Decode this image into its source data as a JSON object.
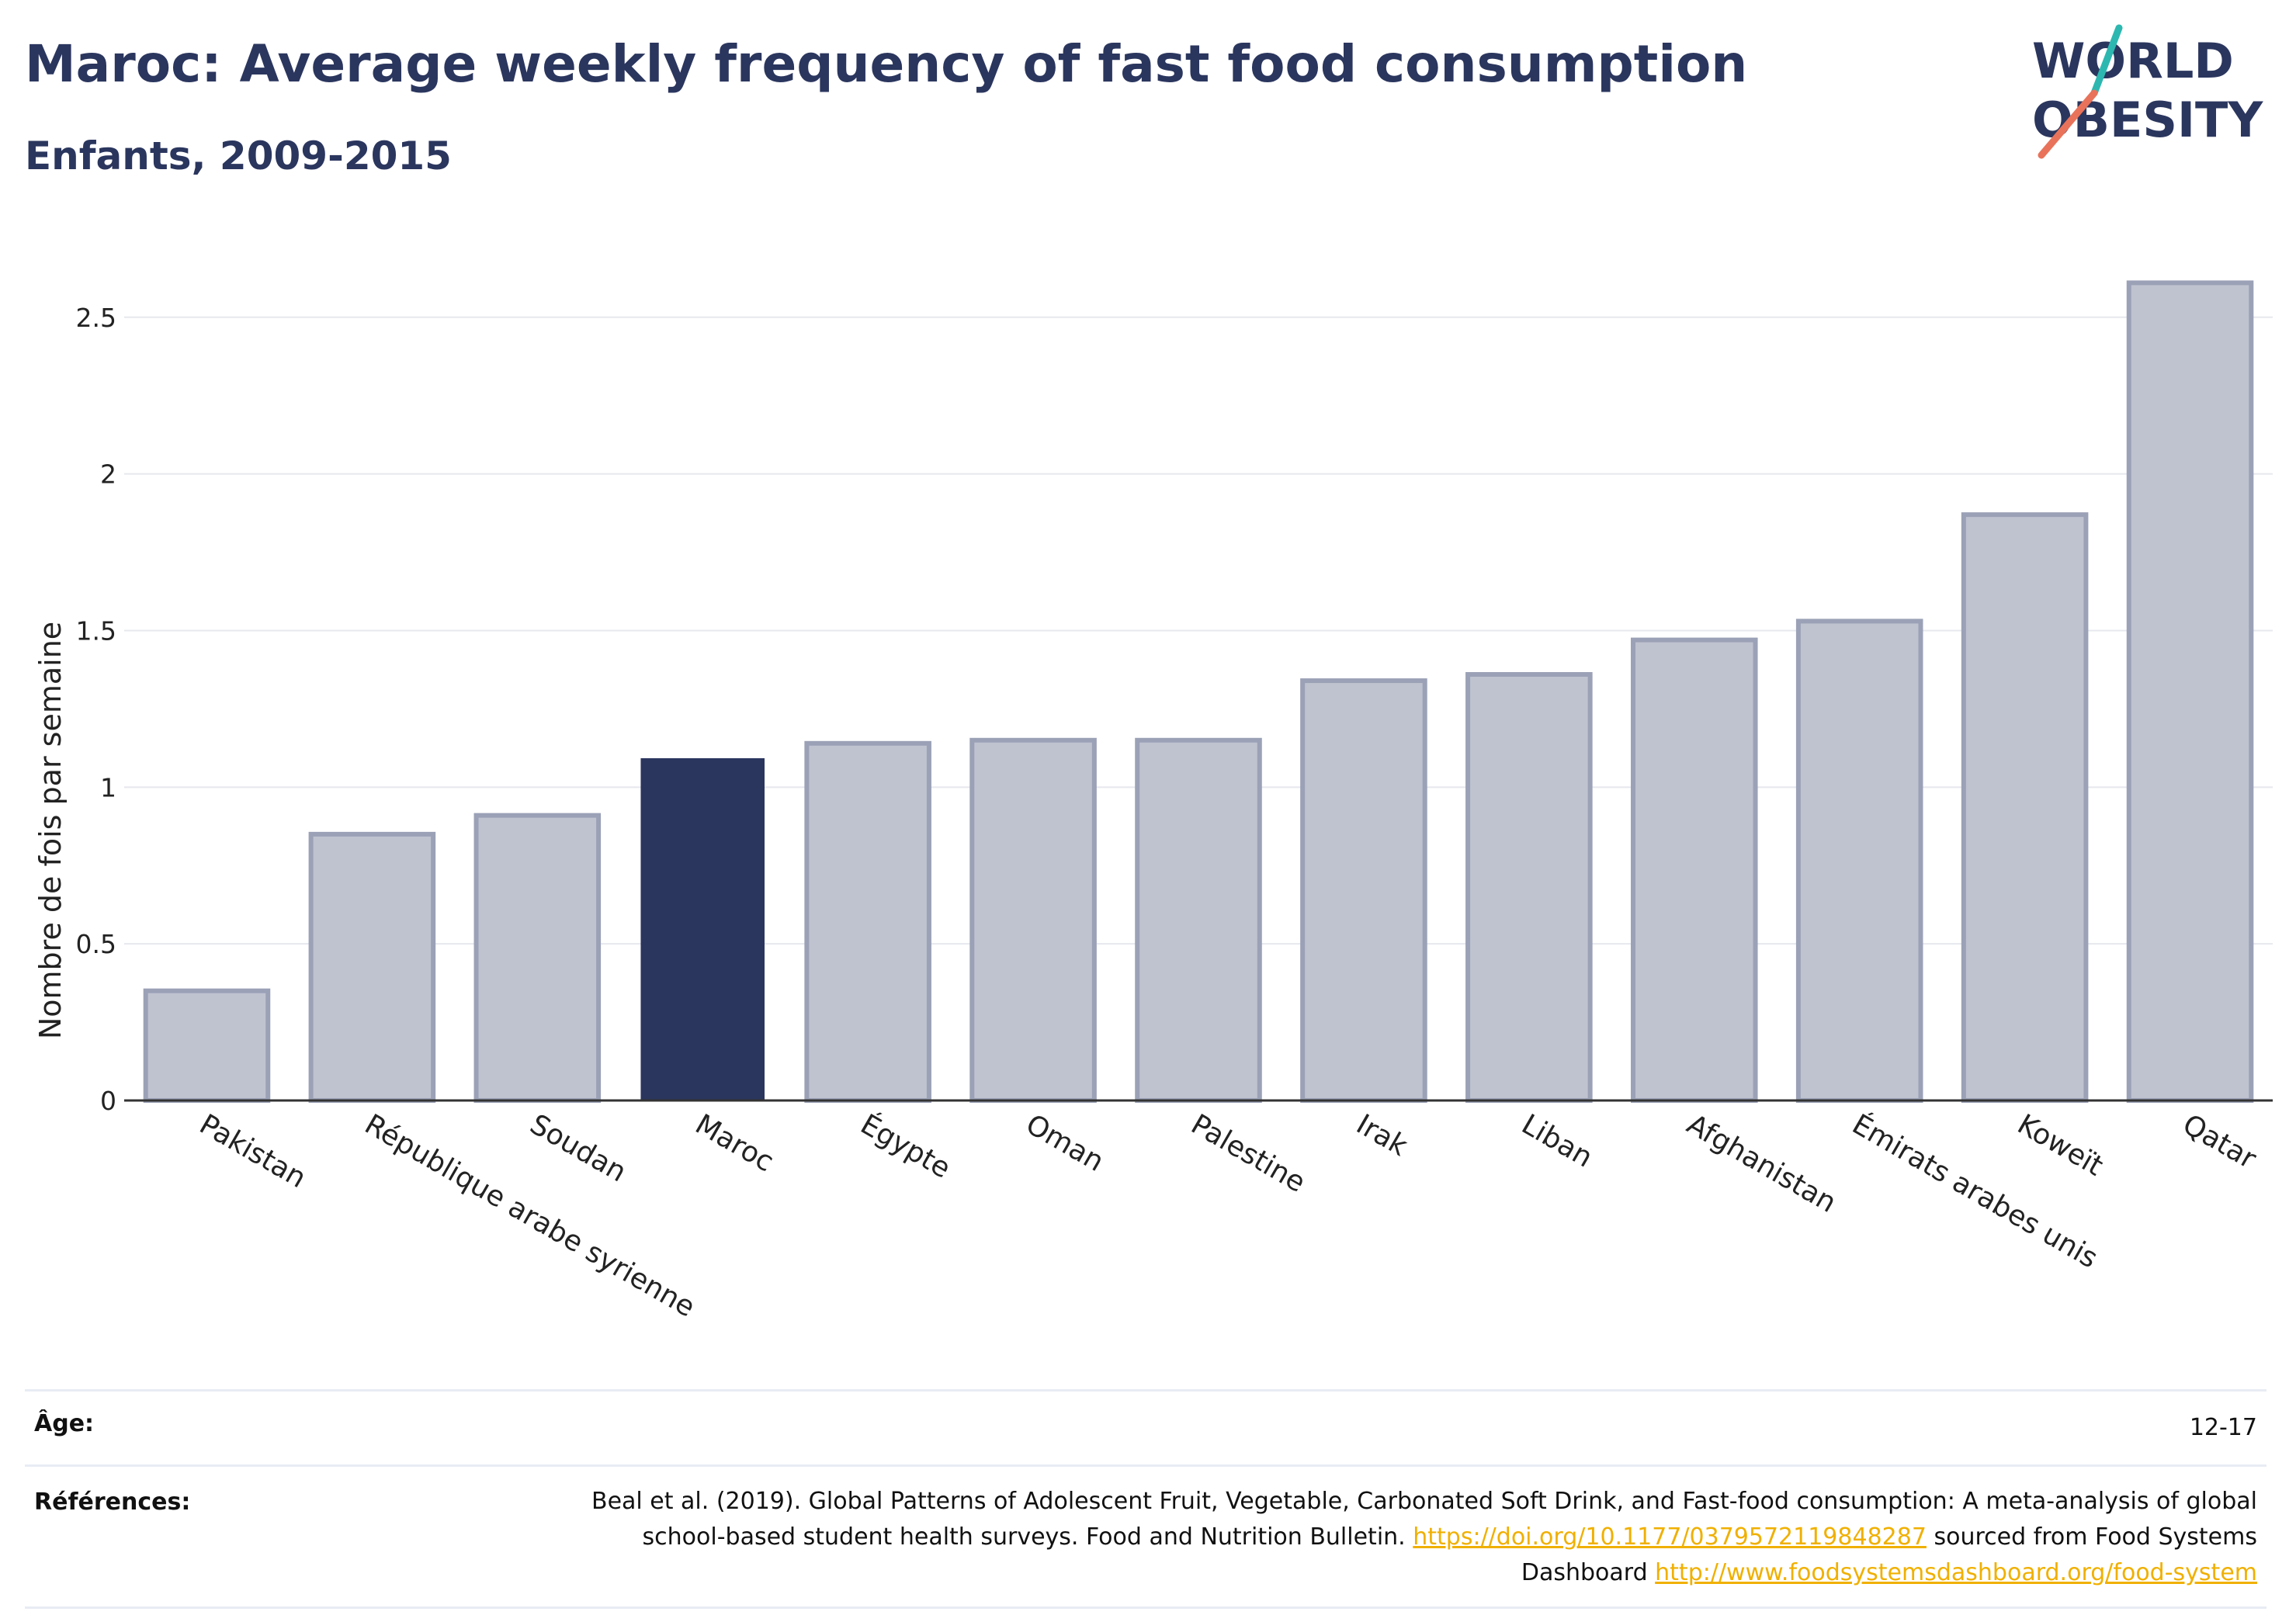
{
  "header": {
    "title": "Maroc: Average weekly frequency of fast food consumption",
    "subtitle": "Enfants, 2009-2015"
  },
  "logo": {
    "line1": "WORLD",
    "line2": "OBESITY"
  },
  "colors": {
    "highlight": "#2b365e",
    "bar_fill": "#bfc3d0",
    "bar_edge": "#9ba1b6",
    "teal": "#2cb8b0",
    "coral": "#e8735a",
    "link": "#f0b000"
  },
  "chart_data": {
    "type": "bar",
    "categories": [
      "Pakistan",
      "République arabe syrienne",
      "Soudan",
      "Maroc",
      "Égypte",
      "Oman",
      "Palestine",
      "Irak",
      "Liban",
      "Afghanistan",
      "Émirats arabes unis",
      "Koweït",
      "Qatar"
    ],
    "values": [
      0.35,
      0.85,
      0.91,
      1.09,
      1.14,
      1.15,
      1.15,
      1.34,
      1.36,
      1.47,
      1.53,
      1.87,
      2.61
    ],
    "highlight": "Maroc",
    "ylabel": "Nombre de fois par semaine",
    "xlabel": "",
    "ylim": [
      0,
      2.72
    ],
    "yticks": [
      0,
      0.5,
      1,
      1.5,
      2,
      2.5
    ],
    "ytick_labels": [
      "0",
      "0.5",
      "1",
      "1.5",
      "2",
      "2.5"
    ],
    "grid": true,
    "legend": "none"
  },
  "footer": {
    "age_label": "Âge:",
    "age_value": "12-17",
    "ref_label": "Références:",
    "ref_text_1": "Beal et al. (2019). Global Patterns of Adolescent Fruit, Vegetable, Carbonated Soft Drink, and Fast-food consumption: A meta-analysis of global school-based student health surveys. Food and Nutrition Bulletin. ",
    "ref_link_1": "https://doi.org/10.1177/0379572119848287",
    "ref_text_2": " sourced from Food Systems Dashboard ",
    "ref_link_2": "http://www.foodsystemsdashboard.org/food-system"
  }
}
